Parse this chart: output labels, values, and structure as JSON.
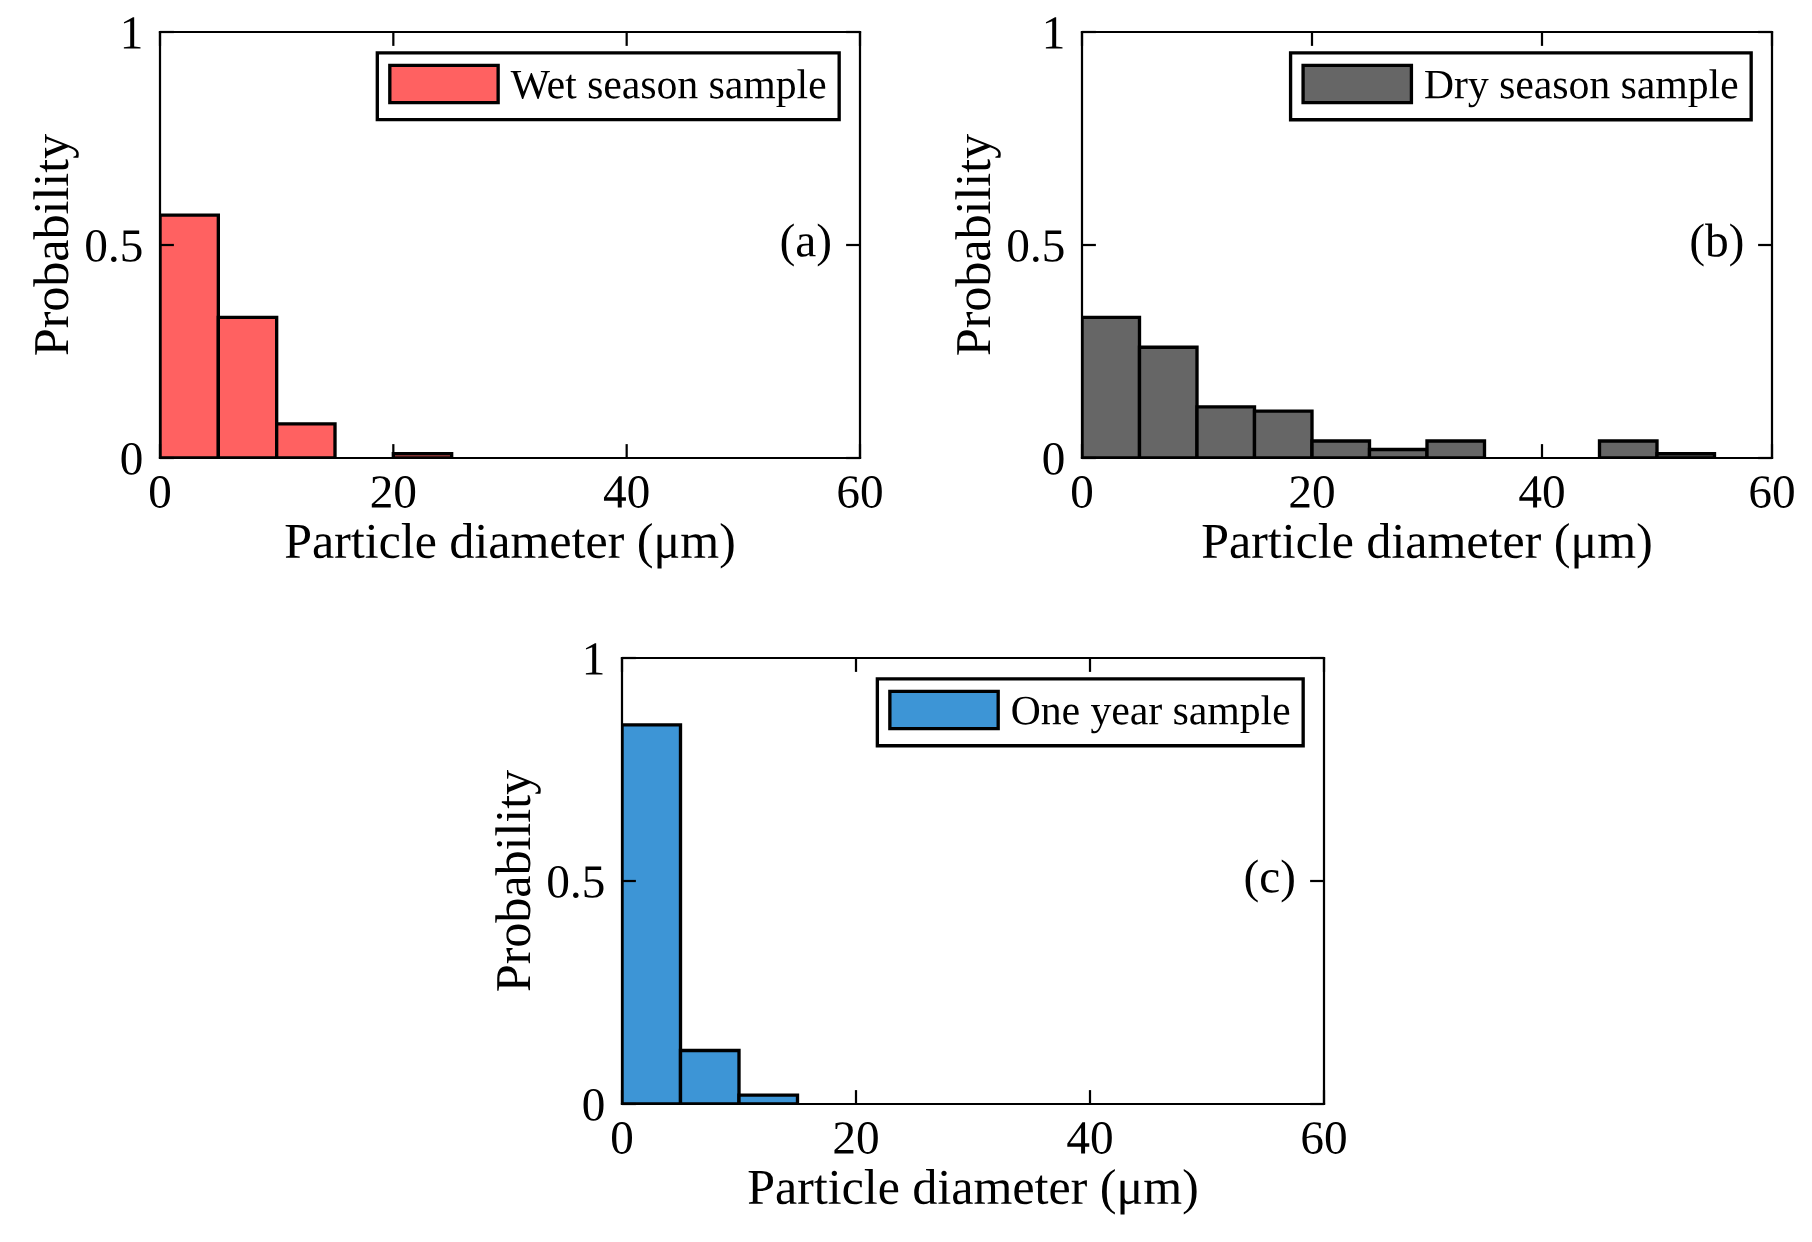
{
  "chart_data": [
    {
      "type": "histogram",
      "xlabel": "Particle diameter (μm)",
      "ylabel": "Probability",
      "bins": [
        0,
        5,
        10,
        15,
        20,
        25
      ],
      "series": [
        {
          "name": "Wet season sample",
          "color": "#ff6161",
          "values": [
            0.57,
            0.33,
            0.08,
            0,
            0.01
          ]
        }
      ],
      "xlim": [
        0,
        60
      ],
      "ylim": [
        0,
        1
      ],
      "xticks": [
        0,
        20,
        40,
        60
      ],
      "yticks": [
        0,
        0.5,
        1
      ],
      "grid": false,
      "legend": "top right",
      "annotations": [
        "(a)"
      ]
    },
    {
      "type": "histogram",
      "xlabel": "Particle diameter (μm)",
      "ylabel": "Probability",
      "bins": [
        0,
        5,
        10,
        15,
        20,
        25,
        30,
        35,
        40,
        45,
        50,
        55
      ],
      "series": [
        {
          "name": "Dry season sample",
          "color": "#666666",
          "values": [
            0.33,
            0.26,
            0.12,
            0.11,
            0.04,
            0.02,
            0.04,
            0,
            0,
            0.04,
            0.01
          ]
        }
      ],
      "xlim": [
        0,
        60
      ],
      "ylim": [
        0,
        1
      ],
      "xticks": [
        0,
        20,
        40,
        60
      ],
      "yticks": [
        0,
        0.5,
        1
      ],
      "grid": false,
      "legend": "top right",
      "annotations": [
        "(b)"
      ]
    },
    {
      "type": "histogram",
      "xlabel": "Particle diameter (μm)",
      "ylabel": "Probability",
      "bins": [
        0,
        5,
        10,
        15
      ],
      "series": [
        {
          "name": "One year sample",
          "color": "#3d95d6",
          "values": [
            0.85,
            0.12,
            0.02
          ]
        }
      ],
      "xlim": [
        0,
        60
      ],
      "ylim": [
        0,
        1
      ],
      "xticks": [
        0,
        20,
        40,
        60
      ],
      "yticks": [
        0,
        0.5,
        1
      ],
      "grid": false,
      "legend": "top right",
      "annotations": [
        "(c)"
      ]
    }
  ]
}
